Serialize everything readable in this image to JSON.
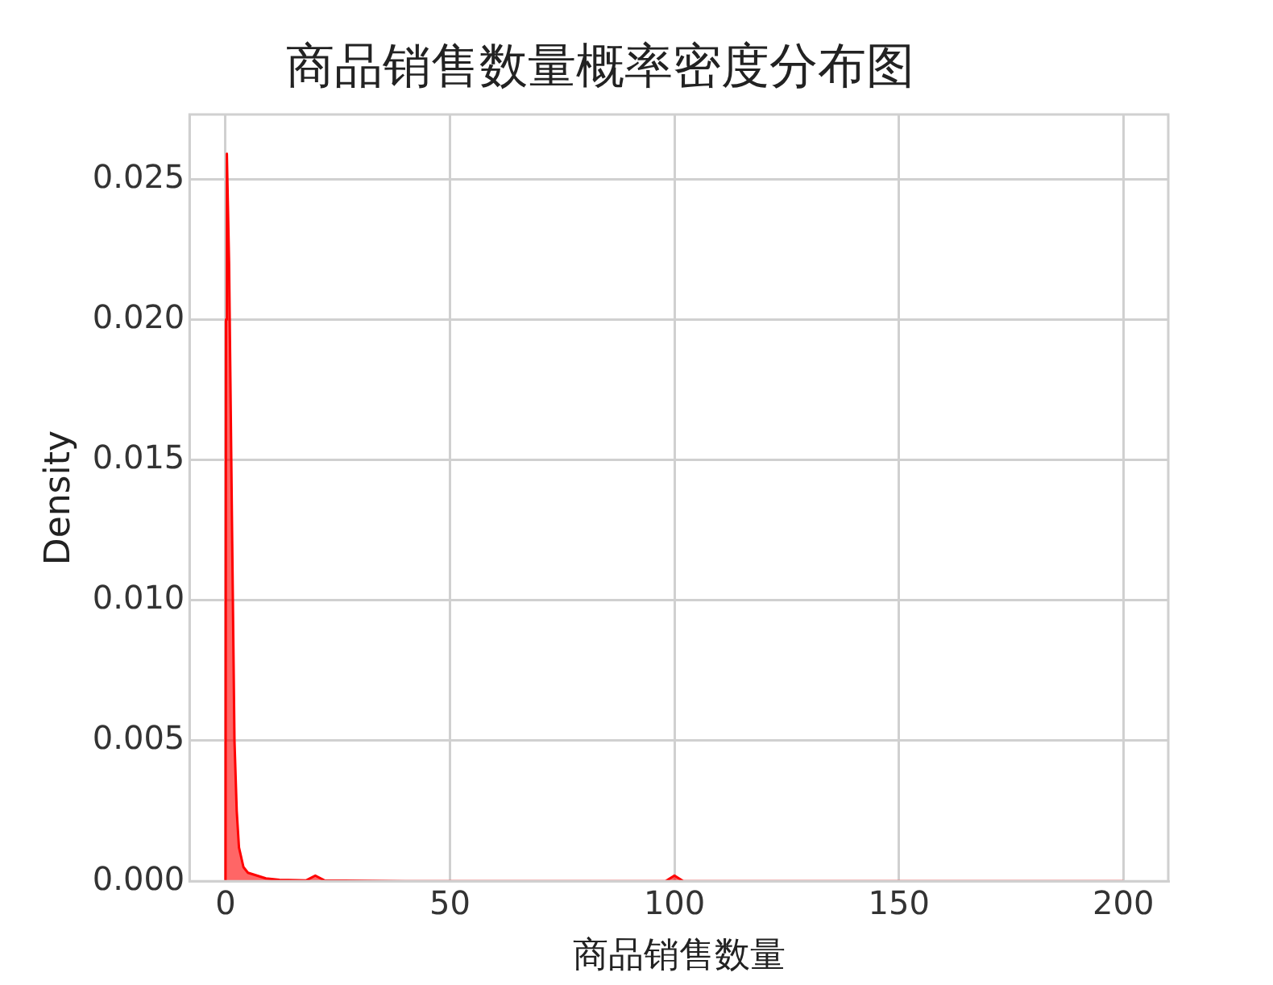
{
  "chart_data": {
    "type": "area",
    "title": "商品销售数量概率密度分布图",
    "xlabel": "商品销售数量",
    "ylabel": "Density",
    "x": [
      0,
      0.1,
      0.3,
      0.8,
      1.5,
      2,
      2.5,
      3,
      4,
      5,
      7,
      9,
      12,
      18,
      20,
      22,
      40,
      98,
      100,
      102,
      200
    ],
    "series": [
      {
        "color": "#ff0000",
        "values": [
          0,
          0.02,
          0.0259,
          0.022,
          0.012,
          0.005,
          0.0025,
          0.0012,
          0.0005,
          0.0003,
          0.0002,
          0.0001,
          5e-05,
          3e-05,
          0.0002,
          3e-05,
          0,
          0,
          0.0002,
          0,
          0
        ]
      }
    ],
    "xlim": [
      -8,
      210
    ],
    "xticks": [
      0,
      50,
      100,
      150,
      200
    ],
    "ylim": [
      0,
      0.0273
    ],
    "yticks": [
      {
        "value": 0,
        "label": "0.000"
      },
      {
        "value": 0.005,
        "label": "0.005"
      },
      {
        "value": 0.01,
        "label": "0.010"
      },
      {
        "value": 0.015,
        "label": "0.015"
      },
      {
        "value": 0.02,
        "label": "0.020"
      },
      {
        "value": 0.025,
        "label": "0.025"
      }
    ],
    "grid": true,
    "legend": false
  }
}
